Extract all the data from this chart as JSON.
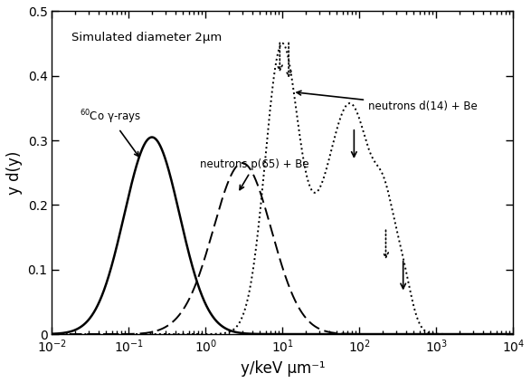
{
  "xlim": [
    0.01,
    10000
  ],
  "ylim": [
    0,
    0.5
  ],
  "xlabel": "y/keV μm⁻¹",
  "ylabel": "y d(y)",
  "annotation_text": "Simulated diameter 2μm",
  "background_color": "#ffffff",
  "yticks": [
    0,
    0.1,
    0.2,
    0.3,
    0.4,
    0.5
  ],
  "co60_label": "$^{60}$Co γ-rays",
  "p65_label": "neutrons p(65) + Be",
  "d14_label": "neutrons d(14) + Be"
}
